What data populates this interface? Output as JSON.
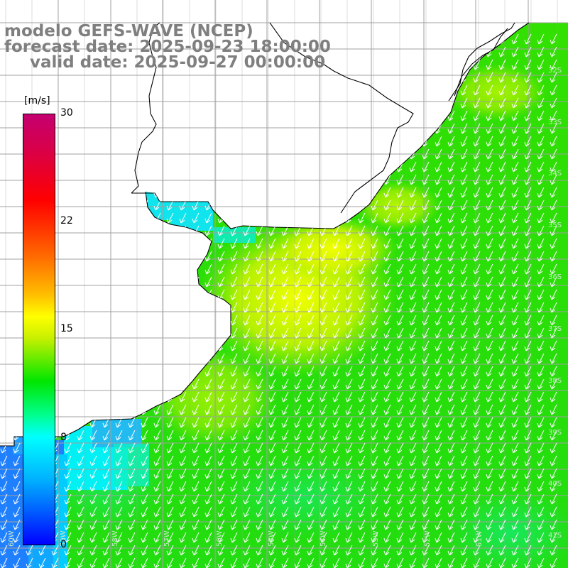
{
  "title": {
    "line1": "modelo GEFS-WAVE (NCEP)",
    "line2": "forecast date: 2025-09-23 18:00:00",
    "line3": "valid date: 2025-09-27 00:00:00"
  },
  "colorbar": {
    "unit": "[m/s]",
    "ticks": [
      "30",
      "22",
      "15",
      "8",
      "0"
    ],
    "colors": [
      "#c4006f",
      "#ff0000",
      "#ff6a00",
      "#ffff00",
      "#00e600",
      "#00ffff",
      "#0060ff",
      "#0000ff"
    ]
  },
  "map": {
    "lat_labels": [
      "32S",
      "33S",
      "34S",
      "35S",
      "36S",
      "37S",
      "38S",
      "39S",
      "40S",
      "41S"
    ],
    "lon_labels": [
      "60W",
      "59W",
      "58W",
      "57W",
      "56W",
      "55W",
      "54W",
      "53W",
      "52W",
      "51W"
    ],
    "arrow_direction": "south-southwest",
    "land_color": "#ffffff",
    "grid_color": "#a0a0a0"
  }
}
